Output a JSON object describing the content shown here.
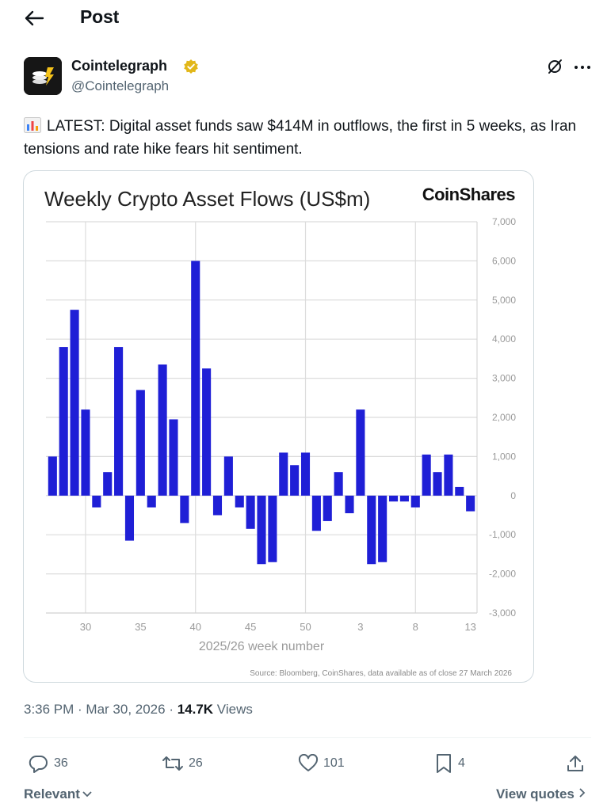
{
  "header": {
    "title": "Post"
  },
  "author": {
    "name": "Cointelegraph",
    "handle": "@Cointelegraph"
  },
  "tweet": {
    "text": "LATEST: Digital asset funds saw $414M in outflows, the first in 5 weeks, as Iran tensions and rate hike fears hit sentiment."
  },
  "meta": {
    "time": "3:36 PM · Mar 30, 2026 · ",
    "views_count": "14.7K",
    "views_label": " Views"
  },
  "actions": {
    "replies": "36",
    "reposts": "26",
    "likes": "101",
    "bookmarks": "4"
  },
  "footer": {
    "sort_label": "Relevant",
    "view_quotes": "View quotes"
  },
  "colors": {
    "bar": "#1f1fd6",
    "grid": "#dcdcdc",
    "verified": "#e2b719"
  },
  "chart_data": {
    "type": "bar",
    "title": "Weekly Crypto Asset Flows (US$m)",
    "brand": "CoinShares",
    "xlabel": "2025/26 week number",
    "ylabel": "",
    "source": "Source: Bloomberg, CoinShares, data available as of close 27 March 2026",
    "ylim": [
      -3000,
      7000
    ],
    "y_ticks": [
      "7,000",
      "6,000",
      "5,000",
      "4,000",
      "3,000",
      "2,000",
      "1,000",
      "0",
      "-1,000",
      "-2,000",
      "-3,000"
    ],
    "x_tick_labels": [
      "30",
      "35",
      "40",
      "45",
      "50",
      "3",
      "8",
      "13"
    ],
    "categories": [
      "27",
      "28",
      "29",
      "30",
      "31",
      "32",
      "33",
      "34",
      "35",
      "36",
      "37",
      "38",
      "39",
      "40",
      "41",
      "42",
      "43",
      "44",
      "45",
      "46",
      "47",
      "48",
      "49",
      "50",
      "51",
      "52",
      "1",
      "2",
      "3",
      "4",
      "5",
      "6",
      "7",
      "8",
      "9",
      "10",
      "11",
      "12",
      "13"
    ],
    "values": [
      1000,
      3800,
      4750,
      2200,
      -300,
      600,
      3800,
      -1150,
      2700,
      -300,
      3350,
      1950,
      -700,
      6000,
      3250,
      -500,
      1000,
      -300,
      -850,
      -1750,
      -1700,
      1100,
      780,
      1100,
      -900,
      -650,
      600,
      -450,
      2200,
      -1750,
      -1700,
      -150,
      -150,
      -300,
      1050,
      600,
      1050,
      220,
      -400
    ]
  }
}
